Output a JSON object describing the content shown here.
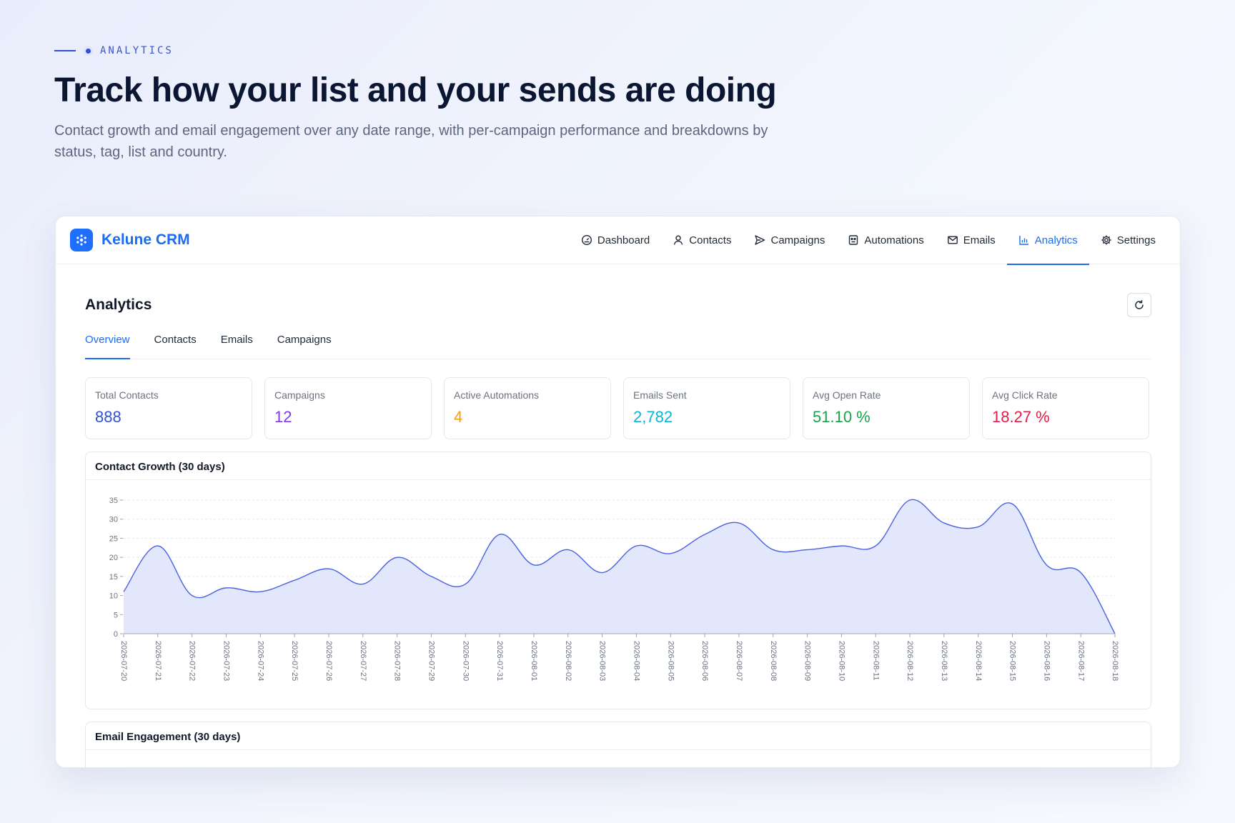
{
  "hero": {
    "eyebrow": "ANALYTICS",
    "title": "Track how your list and your sends are doing",
    "subtitle": "Contact growth and email engagement over any date range, with per-campaign performance and breakdowns by status, tag, list and country."
  },
  "app": {
    "brand": "Kelune CRM",
    "nav": [
      {
        "label": "Dashboard",
        "icon": "gauge-icon"
      },
      {
        "label": "Contacts",
        "icon": "user-icon"
      },
      {
        "label": "Campaigns",
        "icon": "send-icon"
      },
      {
        "label": "Automations",
        "icon": "robot-icon"
      },
      {
        "label": "Emails",
        "icon": "mail-icon"
      },
      {
        "label": "Analytics",
        "icon": "bar-chart-icon",
        "active": true
      },
      {
        "label": "Settings",
        "icon": "gear-icon"
      }
    ],
    "page_title": "Analytics",
    "tabs": [
      {
        "label": "Overview",
        "active": true
      },
      {
        "label": "Contacts"
      },
      {
        "label": "Emails"
      },
      {
        "label": "Campaigns"
      }
    ],
    "stats": [
      {
        "label": "Total Contacts",
        "value": "888",
        "color": "#2f4fd8"
      },
      {
        "label": "Campaigns",
        "value": "12",
        "color": "#7c3aed"
      },
      {
        "label": "Active Automations",
        "value": "4",
        "color": "#f59e0b"
      },
      {
        "label": "Emails Sent",
        "value": "2,782",
        "color": "#06b6d4"
      },
      {
        "label": "Avg Open Rate",
        "value": "51.10 %",
        "color": "#16a34a"
      },
      {
        "label": "Avg Click Rate",
        "value": "18.27 %",
        "color": "#e11d48"
      }
    ],
    "growth_title": "Contact Growth (30 days)",
    "engagement_title": "Email Engagement (30 days)",
    "colors": {
      "accent": "#1a6cf5",
      "line": "#4961e0",
      "fill": "#e3e7fb"
    }
  },
  "chart_data": {
    "type": "area",
    "title": "Contact Growth (30 days)",
    "x": [
      "2026-07-20",
      "2026-07-21",
      "2026-07-22",
      "2026-07-23",
      "2026-07-24",
      "2026-07-25",
      "2026-07-26",
      "2026-07-27",
      "2026-07-28",
      "2026-07-29",
      "2026-07-30",
      "2026-07-31",
      "2026-08-01",
      "2026-08-02",
      "2026-08-03",
      "2026-08-04",
      "2026-08-05",
      "2026-08-06",
      "2026-08-07",
      "2026-08-08",
      "2026-08-09",
      "2026-08-10",
      "2026-08-11",
      "2026-08-12",
      "2026-08-13",
      "2026-08-14",
      "2026-08-15",
      "2026-08-16",
      "2026-08-17",
      "2026-08-18"
    ],
    "values": [
      11,
      23,
      10,
      12,
      11,
      14,
      17,
      13,
      20,
      15,
      13,
      26,
      18,
      22,
      16,
      23,
      21,
      26,
      29,
      22,
      22,
      23,
      23,
      35,
      29,
      28,
      34,
      18,
      16,
      0
    ],
    "yticks": [
      0,
      5,
      10,
      15,
      20,
      25,
      30,
      35
    ],
    "ylim": [
      0,
      35
    ],
    "grid": true,
    "legend": "none"
  }
}
